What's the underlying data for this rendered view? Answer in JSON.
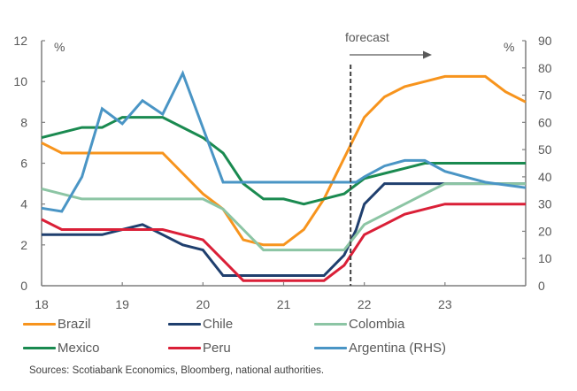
{
  "chart_data": {
    "type": "line",
    "title": "",
    "xlabel": "",
    "ylabel_left": "%",
    "ylabel_right": "%",
    "x_ticks": [
      "18",
      "19",
      "20",
      "21",
      "22",
      "23"
    ],
    "x_range": [
      18,
      24
    ],
    "ylim_left": [
      0,
      12
    ],
    "y_ticks_left": [
      "0",
      "2",
      "4",
      "6",
      "8",
      "10",
      "12"
    ],
    "ylim_right": [
      0,
      90
    ],
    "y_ticks_right": [
      "0",
      "10",
      "20",
      "30",
      "40",
      "50",
      "60",
      "70",
      "80",
      "90"
    ],
    "grid": false,
    "legend_position": "bottom",
    "annotations": {
      "forecast_label": "forecast",
      "forecast_start_x": 21.83
    },
    "series": [
      {
        "name": "Brazil",
        "color": "#F7941D",
        "axis": "left",
        "points": [
          [
            18.0,
            7.0
          ],
          [
            18.25,
            6.5
          ],
          [
            18.5,
            6.5
          ],
          [
            18.75,
            6.5
          ],
          [
            19.0,
            6.5
          ],
          [
            19.25,
            6.5
          ],
          [
            19.5,
            6.5
          ],
          [
            19.75,
            5.5
          ],
          [
            20.0,
            4.5
          ],
          [
            20.25,
            3.75
          ],
          [
            20.5,
            2.25
          ],
          [
            20.75,
            2.0
          ],
          [
            21.0,
            2.0
          ],
          [
            21.25,
            2.75
          ],
          [
            21.5,
            4.25
          ],
          [
            21.75,
            6.25
          ],
          [
            22.0,
            8.25
          ],
          [
            22.25,
            9.25
          ],
          [
            22.5,
            9.75
          ],
          [
            22.75,
            10.0
          ],
          [
            23.0,
            10.25
          ],
          [
            23.25,
            10.25
          ],
          [
            23.5,
            10.25
          ],
          [
            23.75,
            9.5
          ],
          [
            24.0,
            9.0
          ]
        ]
      },
      {
        "name": "Chile",
        "color": "#1F3F6E",
        "axis": "left",
        "points": [
          [
            18.0,
            2.5
          ],
          [
            18.25,
            2.5
          ],
          [
            18.5,
            2.5
          ],
          [
            18.75,
            2.5
          ],
          [
            19.0,
            2.75
          ],
          [
            19.25,
            3.0
          ],
          [
            19.5,
            2.5
          ],
          [
            19.75,
            2.0
          ],
          [
            20.0,
            1.75
          ],
          [
            20.25,
            0.5
          ],
          [
            20.5,
            0.5
          ],
          [
            20.75,
            0.5
          ],
          [
            21.0,
            0.5
          ],
          [
            21.25,
            0.5
          ],
          [
            21.5,
            0.5
          ],
          [
            21.75,
            1.5
          ],
          [
            21.9,
            2.75
          ],
          [
            22.0,
            4.0
          ],
          [
            22.25,
            5.0
          ],
          [
            22.5,
            5.0
          ],
          [
            22.75,
            5.0
          ],
          [
            23.0,
            5.0
          ],
          [
            23.25,
            5.0
          ],
          [
            23.5,
            5.0
          ],
          [
            23.75,
            5.0
          ],
          [
            24.0,
            5.0
          ]
        ]
      },
      {
        "name": "Colombia",
        "color": "#8CC5A4",
        "axis": "left",
        "points": [
          [
            18.0,
            4.75
          ],
          [
            18.5,
            4.25
          ],
          [
            18.75,
            4.25
          ],
          [
            19.0,
            4.25
          ],
          [
            19.25,
            4.25
          ],
          [
            19.5,
            4.25
          ],
          [
            19.75,
            4.25
          ],
          [
            20.0,
            4.25
          ],
          [
            20.25,
            3.75
          ],
          [
            20.5,
            2.75
          ],
          [
            20.75,
            1.75
          ],
          [
            21.0,
            1.75
          ],
          [
            21.25,
            1.75
          ],
          [
            21.5,
            1.75
          ],
          [
            21.75,
            1.75
          ],
          [
            22.0,
            3.0
          ],
          [
            22.25,
            3.5
          ],
          [
            22.5,
            4.0
          ],
          [
            22.75,
            4.5
          ],
          [
            23.0,
            5.0
          ],
          [
            23.25,
            5.0
          ],
          [
            23.5,
            5.0
          ],
          [
            23.75,
            5.0
          ],
          [
            24.0,
            5.0
          ]
        ]
      },
      {
        "name": "Mexico",
        "color": "#1A8A50",
        "axis": "left",
        "points": [
          [
            18.0,
            7.25
          ],
          [
            18.5,
            7.75
          ],
          [
            18.75,
            7.75
          ],
          [
            19.0,
            8.25
          ],
          [
            19.25,
            8.25
          ],
          [
            19.5,
            8.25
          ],
          [
            19.75,
            7.75
          ],
          [
            20.0,
            7.25
          ],
          [
            20.25,
            6.5
          ],
          [
            20.5,
            5.0
          ],
          [
            20.75,
            4.25
          ],
          [
            21.0,
            4.25
          ],
          [
            21.25,
            4.0
          ],
          [
            21.5,
            4.25
          ],
          [
            21.75,
            4.5
          ],
          [
            22.0,
            5.25
          ],
          [
            22.25,
            5.5
          ],
          [
            22.5,
            5.75
          ],
          [
            22.75,
            6.0
          ],
          [
            23.0,
            6.0
          ],
          [
            23.25,
            6.0
          ],
          [
            23.5,
            6.0
          ],
          [
            23.75,
            6.0
          ],
          [
            24.0,
            6.0
          ]
        ]
      },
      {
        "name": "Peru",
        "color": "#DA1F37",
        "axis": "left",
        "points": [
          [
            18.0,
            3.25
          ],
          [
            18.25,
            2.75
          ],
          [
            18.5,
            2.75
          ],
          [
            18.75,
            2.75
          ],
          [
            19.0,
            2.75
          ],
          [
            19.25,
            2.75
          ],
          [
            19.5,
            2.75
          ],
          [
            19.75,
            2.5
          ],
          [
            20.0,
            2.25
          ],
          [
            20.25,
            1.25
          ],
          [
            20.5,
            0.25
          ],
          [
            20.75,
            0.25
          ],
          [
            21.0,
            0.25
          ],
          [
            21.25,
            0.25
          ],
          [
            21.5,
            0.25
          ],
          [
            21.75,
            1.0
          ],
          [
            22.0,
            2.5
          ],
          [
            22.25,
            3.0
          ],
          [
            22.5,
            3.5
          ],
          [
            22.75,
            3.75
          ],
          [
            23.0,
            4.0
          ],
          [
            23.25,
            4.0
          ],
          [
            23.5,
            4.0
          ],
          [
            23.75,
            4.0
          ],
          [
            24.0,
            4.0
          ]
        ]
      },
      {
        "name": "Argentina (RHS)",
        "color": "#4A95C5",
        "axis": "right",
        "points": [
          [
            18.0,
            28.5
          ],
          [
            18.25,
            27.3
          ],
          [
            18.5,
            40.0
          ],
          [
            18.75,
            65.0
          ],
          [
            19.0,
            59.5
          ],
          [
            19.25,
            68.0
          ],
          [
            19.5,
            63.0
          ],
          [
            19.75,
            78.0
          ],
          [
            20.0,
            58.0
          ],
          [
            20.25,
            38.0
          ],
          [
            20.5,
            38.0
          ],
          [
            20.75,
            38.0
          ],
          [
            21.0,
            38.0
          ],
          [
            21.25,
            38.0
          ],
          [
            21.5,
            38.0
          ],
          [
            21.75,
            38.0
          ],
          [
            21.9,
            38.0
          ],
          [
            22.0,
            40.0
          ],
          [
            22.25,
            44.0
          ],
          [
            22.5,
            46.0
          ],
          [
            22.75,
            46.0
          ],
          [
            23.0,
            42.0
          ],
          [
            23.25,
            40.0
          ],
          [
            23.5,
            38.0
          ],
          [
            24.0,
            36.0
          ]
        ]
      }
    ]
  },
  "legend": {
    "items": [
      {
        "label": "Brazil",
        "color": "#F7941D"
      },
      {
        "label": "Chile",
        "color": "#1F3F6E"
      },
      {
        "label": "Colombia",
        "color": "#8CC5A4"
      },
      {
        "label": "Mexico",
        "color": "#1A8A50"
      },
      {
        "label": "Peru",
        "color": "#DA1F37"
      },
      {
        "label": "Argentina (RHS)",
        "color": "#4A95C5"
      }
    ]
  },
  "source_note": "Sources: Scotiabank Economics, Bloomberg, national authorities."
}
